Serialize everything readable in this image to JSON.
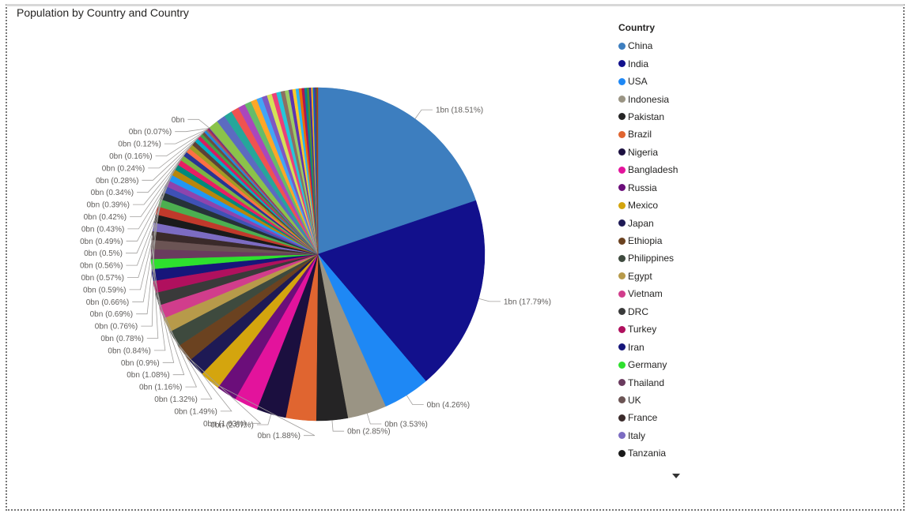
{
  "chart_data": {
    "type": "pie",
    "title": "Population by Country and Country",
    "legend_title": "Country",
    "legend_position": "right",
    "legend_items": [
      {
        "name": "China",
        "color": "#3D7EBF"
      },
      {
        "name": "India",
        "color": "#12108C"
      },
      {
        "name": "USA",
        "color": "#1E88F5"
      },
      {
        "name": "Indonesia",
        "color": "#9A9484"
      },
      {
        "name": "Pakistan",
        "color": "#252425"
      },
      {
        "name": "Brazil",
        "color": "#E06530"
      },
      {
        "name": "Nigeria",
        "color": "#1B0F3F"
      },
      {
        "name": "Bangladesh",
        "color": "#E3139C"
      },
      {
        "name": "Russia",
        "color": "#6B0E7A"
      },
      {
        "name": "Mexico",
        "color": "#D4A50E"
      },
      {
        "name": "Japan",
        "color": "#1E1A55"
      },
      {
        "name": "Ethiopia",
        "color": "#6B4220"
      },
      {
        "name": "Philippines",
        "color": "#3E4A3E"
      },
      {
        "name": "Egypt",
        "color": "#B79A4A"
      },
      {
        "name": "Vietnam",
        "color": "#D13D8C"
      },
      {
        "name": "DRC",
        "color": "#3A3A3A"
      },
      {
        "name": "Turkey",
        "color": "#B0105E"
      },
      {
        "name": "Iran",
        "color": "#16167A"
      },
      {
        "name": "Germany",
        "color": "#2EE02E"
      },
      {
        "name": "Thailand",
        "color": "#6A3B5E"
      },
      {
        "name": "UK",
        "color": "#6B5454"
      },
      {
        "name": "France",
        "color": "#3A2A2A"
      },
      {
        "name": "Italy",
        "color": "#7C6CC2"
      },
      {
        "name": "Tanzania",
        "color": "#1A1A1A"
      }
    ],
    "slices": [
      {
        "label": "1bn (18.51%)",
        "value": 18.51,
        "color": "#3D7EBF"
      },
      {
        "label": "1bn (17.79%)",
        "value": 17.79,
        "color": "#12108C"
      },
      {
        "label": "0bn (4.26%)",
        "value": 4.26,
        "color": "#1E88F5"
      },
      {
        "label": "0bn (3.53%)",
        "value": 3.53,
        "color": "#9A9484"
      },
      {
        "label": "0bn (2.85%)",
        "value": 2.85,
        "color": "#252425"
      },
      {
        "label": "",
        "value": 2.74,
        "color": "#E06530"
      },
      {
        "label": "0bn (2.67%)",
        "value": 2.67,
        "color": "#1B0F3F"
      },
      {
        "label": "",
        "value": 2.15,
        "color": "#E3139C"
      },
      {
        "label": "",
        "value": 1.85,
        "color": "#6B0E7A"
      },
      {
        "label": "0bn (1.88%)",
        "value": 1.88,
        "color": "#D4A50E"
      },
      {
        "label": "",
        "value": 1.63,
        "color": "#1E1A55"
      },
      {
        "label": "0bn (1.63%)",
        "value": 1.63,
        "color": "#6B4220"
      },
      {
        "label": "0bn (1.49%)",
        "value": 1.49,
        "color": "#3E4A3E"
      },
      {
        "label": "0bn (1.32%)",
        "value": 1.32,
        "color": "#B79A4A"
      },
      {
        "label": "",
        "value": 1.23,
        "color": "#D13D8C"
      },
      {
        "label": "0bn (1.16%)",
        "value": 1.16,
        "color": "#3A3A3A"
      },
      {
        "label": "0bn (1.08%)",
        "value": 1.08,
        "color": "#B0105E"
      },
      {
        "label": "",
        "value": 1.07,
        "color": "#16167A"
      },
      {
        "label": "0bn (0.9%)",
        "value": 0.9,
        "color": "#2EE02E"
      },
      {
        "label": "",
        "value": 0.88,
        "color": "#6A3B5E"
      },
      {
        "label": "0bn (0.84%)",
        "value": 0.84,
        "color": "#6B5454"
      },
      {
        "label": "0bn (0.78%)",
        "value": 0.78,
        "color": "#3A2A2A"
      },
      {
        "label": "",
        "value": 0.77,
        "color": "#7C6CC2"
      },
      {
        "label": "0bn (0.76%)",
        "value": 0.76,
        "color": "#1A1A1A"
      },
      {
        "label": "",
        "value": 0.74,
        "color": "#C0392B"
      },
      {
        "label": "0bn (0.69%)",
        "value": 0.69,
        "color": "#4CAF50"
      },
      {
        "label": "0bn (0.66%)",
        "value": 0.66,
        "color": "#263238"
      },
      {
        "label": "0bn (0.59%)",
        "value": 0.59,
        "color": "#3F51B5"
      },
      {
        "label": "0bn (0.57%)",
        "value": 0.57,
        "color": "#8E44AD"
      },
      {
        "label": "",
        "value": 0.57,
        "color": "#2196F3"
      },
      {
        "label": "0bn (0.56%)",
        "value": 0.56,
        "color": "#B8860B"
      },
      {
        "label": "0bn (0.5%)",
        "value": 0.5,
        "color": "#00897B"
      },
      {
        "label": "0bn (0.49%)",
        "value": 0.49,
        "color": "#E91E63"
      },
      {
        "label": "",
        "value": 0.46,
        "color": "#7CB342"
      },
      {
        "label": "0bn (0.43%)",
        "value": 0.43,
        "color": "#283593"
      },
      {
        "label": "0bn (0.42%)",
        "value": 0.42,
        "color": "#FF7043"
      },
      {
        "label": "",
        "value": 0.4,
        "color": "#9E9D24"
      },
      {
        "label": "0bn (0.39%)",
        "value": 0.39,
        "color": "#5D4037"
      },
      {
        "label": "0bn (0.34%)",
        "value": 0.34,
        "color": "#00ACC1"
      },
      {
        "label": "",
        "value": 0.32,
        "color": "#D81B60"
      },
      {
        "label": "0bn (0.28%)",
        "value": 0.28,
        "color": "#43A047"
      },
      {
        "label": "0bn (0.24%)",
        "value": 0.24,
        "color": "#6D4C41"
      },
      {
        "label": "",
        "value": 0.2,
        "color": "#1E88E5"
      },
      {
        "label": "0bn (0.16%)",
        "value": 0.16,
        "color": "#8D6E63"
      },
      {
        "label": "0bn (0.12%)",
        "value": 0.12,
        "color": "#C2185B"
      },
      {
        "label": "0bn (0.07%)",
        "value": 0.07,
        "color": "#455A64"
      },
      {
        "label": "0bn",
        "value": 0.05,
        "color": "#9C27B0"
      },
      {
        "label": "",
        "value": 0.9,
        "color": "#8BC34A"
      },
      {
        "label": "",
        "value": 0.8,
        "color": "#5C6BC0"
      },
      {
        "label": "",
        "value": 0.75,
        "color": "#26A69A"
      },
      {
        "label": "",
        "value": 0.7,
        "color": "#EF5350"
      },
      {
        "label": "",
        "value": 0.65,
        "color": "#AB47BC"
      },
      {
        "label": "",
        "value": 0.6,
        "color": "#66BB6A"
      },
      {
        "label": "",
        "value": 0.55,
        "color": "#FFA726"
      },
      {
        "label": "",
        "value": 0.5,
        "color": "#42A5F5"
      },
      {
        "label": "",
        "value": 0.48,
        "color": "#7E57C2"
      },
      {
        "label": "",
        "value": 0.45,
        "color": "#D4E157"
      },
      {
        "label": "",
        "value": 0.42,
        "color": "#EC407A"
      },
      {
        "label": "",
        "value": 0.4,
        "color": "#26C6DA"
      },
      {
        "label": "",
        "value": 0.38,
        "color": "#8D6E63"
      },
      {
        "label": "",
        "value": 0.35,
        "color": "#9CCC65"
      },
      {
        "label": "",
        "value": 0.33,
        "color": "#5E35B1"
      },
      {
        "label": "",
        "value": 0.3,
        "color": "#FFCA28"
      },
      {
        "label": "",
        "value": 0.28,
        "color": "#29B6F6"
      },
      {
        "label": "",
        "value": 0.26,
        "color": "#EF6C00"
      },
      {
        "label": "",
        "value": 0.24,
        "color": "#AD1457"
      },
      {
        "label": "",
        "value": 0.22,
        "color": "#00838F"
      },
      {
        "label": "",
        "value": 0.2,
        "color": "#558B2F"
      },
      {
        "label": "",
        "value": 0.18,
        "color": "#4527A0"
      },
      {
        "label": "",
        "value": 0.16,
        "color": "#F9A825"
      },
      {
        "label": "",
        "value": 0.14,
        "color": "#0277BD"
      },
      {
        "label": "",
        "value": 0.12,
        "color": "#6A1B9A"
      },
      {
        "label": "",
        "value": 0.1,
        "color": "#2E7D32"
      },
      {
        "label": "",
        "value": 0.08,
        "color": "#BF360C"
      }
    ]
  }
}
